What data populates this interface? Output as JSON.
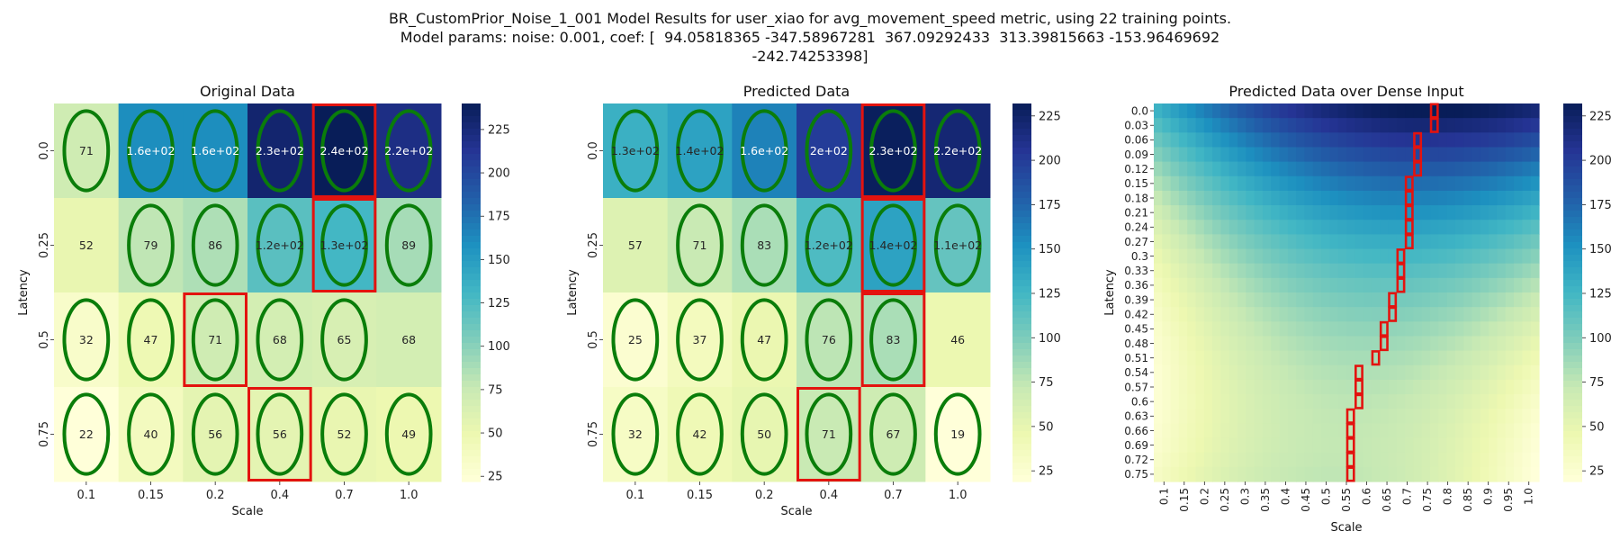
{
  "figure": {
    "suptitle_lines": [
      "BR_CustomPrior_Noise_1_001 Model Results for user_xiao for avg_movement_speed metric, using 22 training points.",
      "Model params: noise: 0.001, coef: [  94.05818365 -347.58967281  367.09292433  313.39815663 -153.96469692",
      "-242.74253398]"
    ]
  },
  "chart_data": [
    {
      "type": "heatmap",
      "title": "Original Data",
      "xlabel": "Scale",
      "ylabel": "Latency",
      "x_categories": [
        "0.1",
        "0.15",
        "0.2",
        "0.4",
        "0.7",
        "1.0"
      ],
      "y_categories": [
        "0.0",
        "0.25",
        "0.5",
        "0.75"
      ],
      "annotations": [
        [
          "71",
          "1.6e+02",
          "1.6e+02",
          "2.3e+02",
          "2.4e+02",
          "2.2e+02"
        ],
        [
          "52",
          "79",
          "86",
          "1.2e+02",
          "1.3e+02",
          "89"
        ],
        [
          "32",
          "47",
          "71",
          "68",
          "65",
          "68"
        ],
        [
          "22",
          "40",
          "56",
          "56",
          "52",
          "49"
        ]
      ],
      "values": [
        [
          71,
          160,
          160,
          230,
          240,
          220
        ],
        [
          52,
          79,
          86,
          120,
          130,
          89
        ],
        [
          32,
          47,
          71,
          68,
          65,
          68
        ],
        [
          22,
          40,
          56,
          56,
          52,
          49
        ]
      ],
      "training_points": [
        [
          0,
          0
        ],
        [
          0,
          1
        ],
        [
          0,
          2
        ],
        [
          0,
          3
        ],
        [
          0,
          4
        ],
        [
          0,
          5
        ],
        [
          1,
          1
        ],
        [
          1,
          2
        ],
        [
          1,
          3
        ],
        [
          1,
          4
        ],
        [
          1,
          5
        ],
        [
          2,
          0
        ],
        [
          2,
          1
        ],
        [
          2,
          2
        ],
        [
          2,
          3
        ],
        [
          2,
          4
        ],
        [
          3,
          0
        ],
        [
          3,
          1
        ],
        [
          3,
          2
        ],
        [
          3,
          3
        ],
        [
          3,
          4
        ],
        [
          3,
          5
        ]
      ],
      "highlighted_cells": [
        [
          0,
          4
        ],
        [
          1,
          4
        ],
        [
          2,
          2
        ],
        [
          3,
          3
        ]
      ],
      "colorbar": {
        "min": 22,
        "max": 240,
        "ticks": [
          25,
          50,
          75,
          100,
          125,
          150,
          175,
          200,
          225
        ]
      }
    },
    {
      "type": "heatmap",
      "title": "Predicted Data",
      "xlabel": "Scale",
      "ylabel": "Latency",
      "x_categories": [
        "0.1",
        "0.15",
        "0.2",
        "0.4",
        "0.7",
        "1.0"
      ],
      "y_categories": [
        "0.0",
        "0.25",
        "0.5",
        "0.75"
      ],
      "annotations": [
        [
          "1.3e+02",
          "1.4e+02",
          "1.6e+02",
          "2e+02",
          "2.3e+02",
          "2.2e+02"
        ],
        [
          "57",
          "71",
          "83",
          "1.2e+02",
          "1.4e+02",
          "1.1e+02"
        ],
        [
          "25",
          "37",
          "47",
          "76",
          "83",
          "46"
        ],
        [
          "32",
          "42",
          "50",
          "71",
          "67",
          "19"
        ]
      ],
      "values": [
        [
          130,
          140,
          160,
          200,
          230,
          220
        ],
        [
          57,
          71,
          83,
          120,
          140,
          110
        ],
        [
          25,
          37,
          47,
          76,
          83,
          46
        ],
        [
          32,
          42,
          50,
          71,
          67,
          19
        ]
      ],
      "training_points": [
        [
          0,
          0
        ],
        [
          0,
          1
        ],
        [
          0,
          2
        ],
        [
          0,
          3
        ],
        [
          0,
          4
        ],
        [
          0,
          5
        ],
        [
          1,
          1
        ],
        [
          1,
          2
        ],
        [
          1,
          3
        ],
        [
          1,
          4
        ],
        [
          1,
          5
        ],
        [
          2,
          0
        ],
        [
          2,
          1
        ],
        [
          2,
          2
        ],
        [
          2,
          3
        ],
        [
          2,
          4
        ],
        [
          3,
          0
        ],
        [
          3,
          1
        ],
        [
          3,
          2
        ],
        [
          3,
          3
        ],
        [
          3,
          4
        ],
        [
          3,
          5
        ]
      ],
      "highlighted_cells": [
        [
          0,
          4
        ],
        [
          1,
          4
        ],
        [
          2,
          4
        ],
        [
          3,
          3
        ]
      ],
      "colorbar": {
        "min": 19,
        "max": 232,
        "ticks": [
          25,
          50,
          75,
          100,
          125,
          150,
          175,
          200,
          225
        ]
      }
    },
    {
      "type": "heatmap",
      "title": "Predicted Data over Dense Input",
      "xlabel": "Scale",
      "ylabel": "Latency",
      "x_tick_labels": [
        "0.1",
        "0.15",
        "0.2",
        "0.25",
        "0.3",
        "0.35",
        "0.4",
        "0.45",
        "0.5",
        "0.55",
        "0.6",
        "0.65",
        "0.7",
        "0.75",
        "0.8",
        "0.85",
        "0.9",
        "0.95",
        "1.0"
      ],
      "y_tick_labels": [
        "0.0",
        "0.03",
        "0.06",
        "0.09",
        "0.12",
        "0.15",
        "0.18",
        "0.21",
        "0.24",
        "0.27",
        "0.3",
        "0.33",
        "0.36",
        "0.39",
        "0.42",
        "0.45",
        "0.48",
        "0.51",
        "0.54",
        "0.57",
        "0.6",
        "0.63",
        "0.66",
        "0.69",
        "0.72",
        "0.75"
      ],
      "x_range": [
        0.1,
        1.0
      ],
      "y_range": [
        0.0,
        0.75
      ],
      "model": {
        "coef": [
          94.05818365,
          -347.58967281,
          367.09292433,
          313.39815663,
          -153.96469692,
          -242.74253398
        ]
      },
      "argmax_path_scale_by_row": [
        0.75,
        0.75,
        0.73,
        0.73,
        0.73,
        0.71,
        0.71,
        0.71,
        0.69,
        0.69,
        0.67,
        0.67,
        0.67,
        0.65,
        0.65,
        0.63,
        0.63,
        0.61,
        0.59,
        0.59,
        0.59,
        0.57,
        0.57,
        0.55,
        0.55,
        0.55
      ],
      "colorbar": {
        "min": 19,
        "max": 232,
        "ticks": [
          25,
          50,
          75,
          100,
          125,
          150,
          175,
          200,
          225
        ]
      }
    }
  ],
  "colors": {
    "training_marker": "#0a7d0a",
    "highlight": "#e3130f",
    "colormap": "YlGnBu"
  }
}
